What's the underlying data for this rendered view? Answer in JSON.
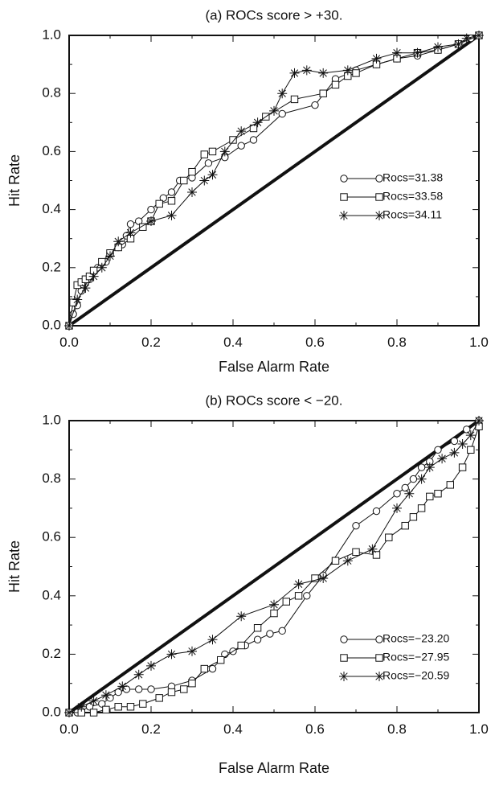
{
  "chart_data": [
    {
      "type": "line",
      "title": "(a) ROCs score > +30.",
      "xlabel": "False Alarm Rate",
      "ylabel": "Hit Rate",
      "xlim": [
        0.0,
        1.0
      ],
      "ylim": [
        0.0,
        1.0
      ],
      "xticks": [
        "0.0",
        "0.2",
        "0.4",
        "0.6",
        "0.8",
        "1.0"
      ],
      "yticks": [
        "0.0",
        "0.2",
        "0.4",
        "0.6",
        "0.8",
        "1.0"
      ],
      "legend_position": "right",
      "grid": false,
      "diagonal_reference": true,
      "series": [
        {
          "name": "Rocs=31.38",
          "marker": "circle",
          "x": [
            0.0,
            0.01,
            0.02,
            0.03,
            0.05,
            0.07,
            0.09,
            0.1,
            0.12,
            0.13,
            0.14,
            0.15,
            0.17,
            0.2,
            0.23,
            0.25,
            0.27,
            0.3,
            0.34,
            0.38,
            0.42,
            0.45,
            0.52,
            0.6,
            0.65,
            0.7,
            0.75,
            0.8,
            0.85,
            0.9,
            0.95,
            0.98,
            1.0
          ],
          "y": [
            0.0,
            0.04,
            0.07,
            0.12,
            0.16,
            0.2,
            0.22,
            0.25,
            0.27,
            0.28,
            0.31,
            0.35,
            0.36,
            0.4,
            0.44,
            0.46,
            0.5,
            0.51,
            0.56,
            0.58,
            0.62,
            0.64,
            0.73,
            0.76,
            0.85,
            0.88,
            0.9,
            0.92,
            0.93,
            0.95,
            0.97,
            0.99,
            1.0
          ]
        },
        {
          "name": "Rocs=33.58",
          "marker": "square",
          "x": [
            0.0,
            0.01,
            0.02,
            0.03,
            0.04,
            0.05,
            0.06,
            0.08,
            0.1,
            0.12,
            0.15,
            0.18,
            0.2,
            0.22,
            0.25,
            0.28,
            0.3,
            0.33,
            0.35,
            0.4,
            0.45,
            0.48,
            0.55,
            0.62,
            0.65,
            0.68,
            0.7,
            0.75,
            0.8,
            0.85,
            0.9,
            0.95,
            1.0
          ],
          "y": [
            0.0,
            0.08,
            0.14,
            0.15,
            0.16,
            0.17,
            0.19,
            0.22,
            0.25,
            0.27,
            0.3,
            0.34,
            0.36,
            0.42,
            0.43,
            0.5,
            0.53,
            0.59,
            0.6,
            0.64,
            0.68,
            0.72,
            0.78,
            0.8,
            0.83,
            0.86,
            0.87,
            0.9,
            0.92,
            0.94,
            0.95,
            0.97,
            1.0
          ]
        },
        {
          "name": "Rocs=34.11",
          "marker": "asterisk",
          "x": [
            0.0,
            0.02,
            0.04,
            0.06,
            0.08,
            0.1,
            0.12,
            0.15,
            0.2,
            0.25,
            0.3,
            0.33,
            0.35,
            0.38,
            0.42,
            0.46,
            0.5,
            0.52,
            0.55,
            0.58,
            0.62,
            0.68,
            0.75,
            0.8,
            0.85,
            0.9,
            0.95,
            0.97,
            1.0
          ],
          "y": [
            0.0,
            0.09,
            0.13,
            0.17,
            0.2,
            0.24,
            0.29,
            0.32,
            0.36,
            0.38,
            0.46,
            0.5,
            0.52,
            0.6,
            0.67,
            0.7,
            0.74,
            0.8,
            0.87,
            0.88,
            0.87,
            0.88,
            0.92,
            0.94,
            0.94,
            0.96,
            0.97,
            0.99,
            1.0
          ]
        }
      ]
    },
    {
      "type": "line",
      "title": "(b) ROCs score < −20.",
      "xlabel": "False Alarm Rate",
      "ylabel": "Hit Rate",
      "xlim": [
        0.0,
        1.0
      ],
      "ylim": [
        0.0,
        1.0
      ],
      "xticks": [
        "0.0",
        "0.2",
        "0.4",
        "0.6",
        "0.8",
        "1.0"
      ],
      "yticks": [
        "0.0",
        "0.2",
        "0.4",
        "0.6",
        "0.8",
        "1.0"
      ],
      "legend_position": "bottom-right",
      "grid": false,
      "diagonal_reference": true,
      "series": [
        {
          "name": "Rocs=−23.20",
          "marker": "circle",
          "x": [
            0.0,
            0.02,
            0.05,
            0.08,
            0.1,
            0.12,
            0.14,
            0.17,
            0.2,
            0.25,
            0.3,
            0.35,
            0.38,
            0.4,
            0.43,
            0.46,
            0.49,
            0.52,
            0.58,
            0.62,
            0.7,
            0.75,
            0.8,
            0.82,
            0.84,
            0.86,
            0.88,
            0.9,
            0.94,
            0.97,
            1.0
          ],
          "y": [
            0.0,
            0.0,
            0.02,
            0.03,
            0.05,
            0.07,
            0.08,
            0.08,
            0.08,
            0.09,
            0.11,
            0.15,
            0.2,
            0.21,
            0.23,
            0.25,
            0.27,
            0.28,
            0.4,
            0.47,
            0.64,
            0.69,
            0.75,
            0.77,
            0.8,
            0.84,
            0.86,
            0.9,
            0.93,
            0.97,
            1.0
          ]
        },
        {
          "name": "Rocs=−27.95",
          "marker": "square",
          "x": [
            0.0,
            0.03,
            0.06,
            0.09,
            0.12,
            0.15,
            0.18,
            0.22,
            0.25,
            0.28,
            0.3,
            0.33,
            0.37,
            0.42,
            0.46,
            0.5,
            0.53,
            0.56,
            0.6,
            0.65,
            0.7,
            0.75,
            0.78,
            0.82,
            0.84,
            0.86,
            0.88,
            0.9,
            0.93,
            0.96,
            0.98,
            1.0
          ],
          "y": [
            0.0,
            0.0,
            0.0,
            0.01,
            0.02,
            0.02,
            0.03,
            0.05,
            0.07,
            0.08,
            0.1,
            0.15,
            0.18,
            0.23,
            0.29,
            0.34,
            0.38,
            0.4,
            0.46,
            0.52,
            0.55,
            0.54,
            0.6,
            0.64,
            0.67,
            0.7,
            0.74,
            0.75,
            0.78,
            0.84,
            0.9,
            0.98
          ]
        },
        {
          "name": "Rocs=−20.59",
          "marker": "asterisk",
          "x": [
            0.0,
            0.03,
            0.06,
            0.09,
            0.13,
            0.17,
            0.2,
            0.25,
            0.3,
            0.35,
            0.42,
            0.5,
            0.56,
            0.62,
            0.68,
            0.74,
            0.8,
            0.83,
            0.86,
            0.88,
            0.91,
            0.94,
            0.96,
            0.98,
            1.0
          ],
          "y": [
            0.0,
            0.02,
            0.04,
            0.06,
            0.09,
            0.13,
            0.16,
            0.2,
            0.21,
            0.25,
            0.33,
            0.37,
            0.44,
            0.46,
            0.52,
            0.56,
            0.7,
            0.75,
            0.8,
            0.84,
            0.87,
            0.89,
            0.92,
            0.95,
            1.0
          ]
        }
      ]
    }
  ]
}
